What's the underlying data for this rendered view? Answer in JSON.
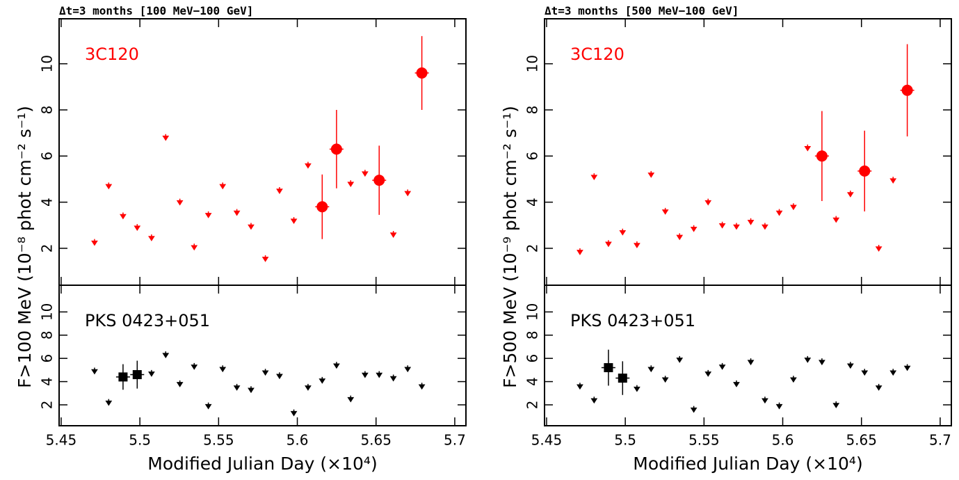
{
  "chart_data": [
    {
      "type": "scatter",
      "title": "Δt=3 months [100 MeV−100 GeV]",
      "annotation": "3C120",
      "color": "#ff0000",
      "y_label": "F>100 MeV (10⁻⁸ phot cm⁻² s⁻¹)",
      "x": [
        5.4712,
        5.4802,
        5.4893,
        5.4983,
        5.5074,
        5.5164,
        5.5254,
        5.5345,
        5.5435,
        5.5526,
        5.5616,
        5.5706,
        5.5797,
        5.5887,
        5.5978,
        5.6068,
        5.6158,
        5.6249,
        5.6339,
        5.643,
        5.652,
        5.661,
        5.6701,
        5.6791
      ],
      "values": [
        2.25,
        4.7,
        3.4,
        2.9,
        2.45,
        6.8,
        4.0,
        2.05,
        3.45,
        4.7,
        3.55,
        2.95,
        1.55,
        4.5,
        3.2,
        5.6,
        3.8,
        6.3,
        4.8,
        5.25,
        4.95,
        2.6,
        4.4,
        9.6
      ],
      "errors": [
        null,
        null,
        null,
        null,
        null,
        null,
        null,
        null,
        null,
        null,
        null,
        null,
        null,
        null,
        null,
        null,
        1.4,
        1.7,
        null,
        null,
        1.5,
        null,
        null,
        1.6
      ],
      "upper_limit": [
        true,
        true,
        true,
        true,
        true,
        true,
        true,
        true,
        true,
        true,
        true,
        true,
        true,
        true,
        true,
        true,
        false,
        false,
        true,
        true,
        false,
        true,
        true,
        false
      ],
      "marker": "circle",
      "xlim": [
        5.4487,
        5.7071
      ],
      "xticks": [
        5.45,
        5.5,
        5.55,
        5.6,
        5.65,
        5.7
      ],
      "ylim": [
        0.4,
        11.95
      ],
      "yticks": [
        2,
        4,
        6,
        8,
        10
      ]
    },
    {
      "type": "scatter",
      "annotation": "PKS 0423+051",
      "color": "#000000",
      "x_label": "Modified Julian Day (×10⁴)",
      "x": [
        5.4712,
        5.4802,
        5.4893,
        5.4983,
        5.5074,
        5.5164,
        5.5254,
        5.5345,
        5.5435,
        5.5526,
        5.5616,
        5.5706,
        5.5797,
        5.5887,
        5.5978,
        5.6068,
        5.6158,
        5.6249,
        5.6339,
        5.643,
        5.652,
        5.661,
        5.6701,
        5.6791
      ],
      "values": [
        4.9,
        2.2,
        4.4,
        4.6,
        4.7,
        6.3,
        3.8,
        5.3,
        1.9,
        5.1,
        3.5,
        3.3,
        4.8,
        4.5,
        1.3,
        3.5,
        4.1,
        5.4,
        2.5,
        4.6,
        4.6,
        4.3,
        5.1,
        3.6
      ],
      "errors": [
        null,
        null,
        1.1,
        1.2,
        null,
        null,
        null,
        null,
        null,
        null,
        null,
        null,
        null,
        null,
        null,
        null,
        null,
        null,
        null,
        null,
        null,
        null,
        null,
        null
      ],
      "upper_limit": [
        true,
        true,
        false,
        false,
        true,
        true,
        true,
        true,
        true,
        true,
        true,
        true,
        true,
        true,
        true,
        true,
        true,
        true,
        true,
        true,
        true,
        true,
        true,
        true
      ],
      "marker": "square",
      "xlim": [
        5.4487,
        5.7071
      ],
      "xticks": [
        5.45,
        5.5,
        5.55,
        5.6,
        5.65,
        5.7
      ],
      "ylim": [
        0.2,
        12.3
      ],
      "yticks": [
        2,
        4,
        6,
        8,
        10
      ]
    },
    {
      "type": "scatter",
      "title": "Δt=3 months [500 MeV−100 GeV]",
      "annotation": "3C120",
      "color": "#ff0000",
      "y_label": "F>500 MeV (10⁻⁹ phot cm⁻² s⁻¹)",
      "x": [
        5.4712,
        5.4802,
        5.4893,
        5.4983,
        5.5074,
        5.5164,
        5.5254,
        5.5345,
        5.5435,
        5.5526,
        5.5616,
        5.5706,
        5.5797,
        5.5887,
        5.5978,
        5.6068,
        5.6158,
        5.6249,
        5.6339,
        5.643,
        5.652,
        5.661,
        5.6701,
        5.6791
      ],
      "values": [
        1.85,
        5.1,
        2.2,
        2.7,
        2.15,
        5.2,
        3.6,
        2.5,
        2.85,
        4.0,
        3.0,
        2.95,
        3.15,
        2.95,
        3.55,
        3.8,
        6.35,
        6.0,
        3.25,
        4.35,
        5.35,
        2.0,
        4.95,
        8.85
      ],
      "errors": [
        null,
        null,
        null,
        null,
        null,
        null,
        null,
        null,
        null,
        null,
        null,
        null,
        null,
        null,
        null,
        null,
        null,
        1.95,
        null,
        null,
        1.75,
        null,
        null,
        2.0
      ],
      "upper_limit": [
        true,
        true,
        true,
        true,
        true,
        true,
        true,
        true,
        true,
        true,
        true,
        true,
        true,
        true,
        true,
        true,
        true,
        false,
        true,
        true,
        false,
        true,
        true,
        false
      ],
      "marker": "circle",
      "xlim": [
        5.4487,
        5.7071
      ],
      "xticks": [
        5.45,
        5.5,
        5.55,
        5.6,
        5.65,
        5.7
      ],
      "ylim": [
        0.4,
        11.95
      ],
      "yticks": [
        2,
        4,
        6,
        8,
        10
      ]
    },
    {
      "type": "scatter",
      "annotation": "PKS 0423+051",
      "color": "#000000",
      "x_label": "Modified Julian Day (×10⁴)",
      "x": [
        5.4712,
        5.4802,
        5.4893,
        5.4983,
        5.5074,
        5.5164,
        5.5254,
        5.5345,
        5.5435,
        5.5526,
        5.5616,
        5.5706,
        5.5797,
        5.5887,
        5.5978,
        5.6068,
        5.6158,
        5.6249,
        5.6339,
        5.643,
        5.652,
        5.661,
        5.6701,
        5.6791
      ],
      "values": [
        3.6,
        2.4,
        5.2,
        4.3,
        3.4,
        5.1,
        4.2,
        5.9,
        1.6,
        4.7,
        5.3,
        3.8,
        5.7,
        2.4,
        1.9,
        4.2,
        5.9,
        5.7,
        2.0,
        5.4,
        4.8,
        3.5,
        4.8,
        5.2
      ],
      "errors": [
        null,
        null,
        1.55,
        1.45,
        null,
        null,
        null,
        null,
        null,
        null,
        null,
        null,
        null,
        null,
        null,
        null,
        null,
        null,
        null,
        null,
        null,
        null,
        null,
        null
      ],
      "upper_limit": [
        true,
        true,
        false,
        false,
        true,
        true,
        true,
        true,
        true,
        true,
        true,
        true,
        true,
        true,
        true,
        true,
        true,
        true,
        true,
        true,
        true,
        true,
        true,
        true
      ],
      "marker": "square",
      "xlim": [
        5.4487,
        5.7071
      ],
      "xticks": [
        5.45,
        5.5,
        5.55,
        5.6,
        5.65,
        5.7
      ],
      "ylim": [
        0.2,
        12.3
      ],
      "yticks": [
        2,
        4,
        6,
        8,
        10
      ]
    }
  ]
}
